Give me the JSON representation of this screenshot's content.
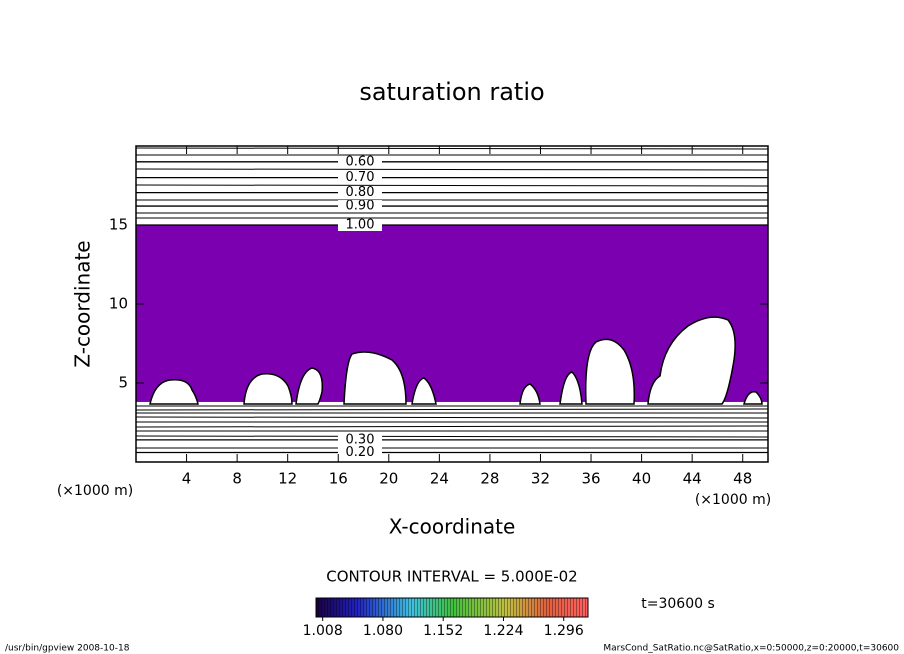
{
  "chart_data": {
    "type": "contour",
    "title": "saturation ratio",
    "x_label": "X-coordinate",
    "y_label": "Z-coordinate",
    "x_unit": "(×1000 m)",
    "y_unit": "(×1000 m)",
    "xlim": [
      0,
      50
    ],
    "ylim": [
      0,
      20
    ],
    "xticks": [
      4,
      8,
      12,
      16,
      20,
      24,
      28,
      32,
      36,
      40,
      44,
      48
    ],
    "yticks": [
      5,
      10,
      15
    ],
    "shaded_region": {
      "ymin": 3.8,
      "ymax": 15,
      "color": "#7a00b0"
    },
    "contours": [
      {
        "label": "0.60",
        "y": 19.0
      },
      {
        "label": "0.70",
        "y": 18.0
      },
      {
        "label": "0.80",
        "y": 17.05
      },
      {
        "label": "0.90",
        "y": 16.2
      },
      {
        "label": "1.00",
        "y": 15.0
      },
      {
        "label": "0.30",
        "y": 1.4
      },
      {
        "label": "0.20",
        "y": 0.6
      }
    ],
    "contour_interval": "CONTOUR INTERVAL = 5.000E-02",
    "time_label": "t=30600 s",
    "colorbar": {
      "lim": [
        1.0,
        1.325
      ],
      "ticks": [
        {
          "value": 1.008,
          "label": "1.008"
        },
        {
          "value": 1.08,
          "label": "1.080"
        },
        {
          "value": 1.152,
          "label": "1.152"
        },
        {
          "value": 1.224,
          "label": "1.224"
        },
        {
          "value": 1.296,
          "label": "1.296"
        }
      ]
    },
    "footer_left": "/usr/bin/gpview   2008-10-18",
    "footer_right": "MarsCond_SatRatio.nc@SatRatio,x=0:50000,z=0:20000,t=30600"
  }
}
